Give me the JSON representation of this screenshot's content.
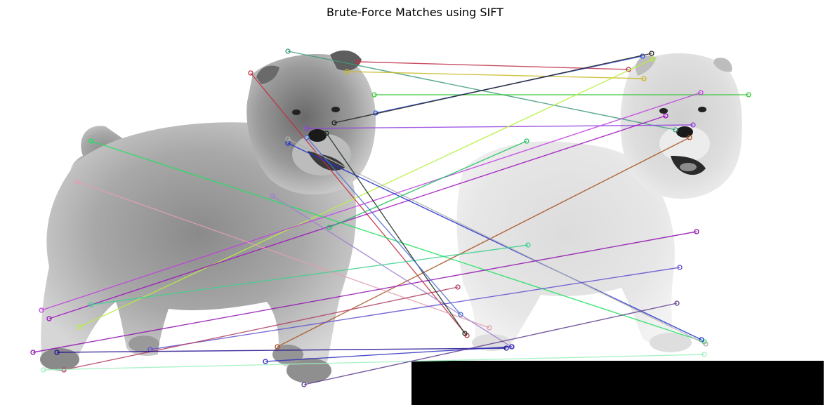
{
  "figure": {
    "title": "Brute-Force Matches using SIFT"
  },
  "images": {
    "left": {
      "content": "gray-chow-chow-dog"
    },
    "right": {
      "content": "light-chow-chow-dog"
    },
    "padding_color": "#000000",
    "background_color": "#ffffff"
  },
  "matches": [
    {
      "color": "#3c9a7a"
    },
    {
      "color": "#c03040"
    },
    {
      "color": "#c8b820"
    },
    {
      "color": "#c03048"
    },
    {
      "color": "#40c840"
    },
    {
      "color": "#3050e0"
    },
    {
      "color": "#202020"
    },
    {
      "color": "#9040e0"
    },
    {
      "color": "#b8f040"
    },
    {
      "color": "#20e060"
    },
    {
      "color": "#c040e0"
    },
    {
      "color": "#a010c0"
    },
    {
      "color": "#a85020"
    },
    {
      "color": "#2030d0"
    },
    {
      "color": "#e0a0b0"
    },
    {
      "color": "#a080d0"
    },
    {
      "color": "#b0b0b0"
    },
    {
      "color": "#40d090"
    },
    {
      "color": "#9010b0"
    },
    {
      "color": "#6050d0"
    },
    {
      "color": "#b04060"
    },
    {
      "color": "#201090"
    },
    {
      "color": "#3030c0"
    },
    {
      "color": "#a0f0c0"
    },
    {
      "color": "#604090"
    },
    {
      "color": "#203020"
    },
    {
      "color": "#20c060"
    },
    {
      "color": "#5070d0"
    }
  ]
}
